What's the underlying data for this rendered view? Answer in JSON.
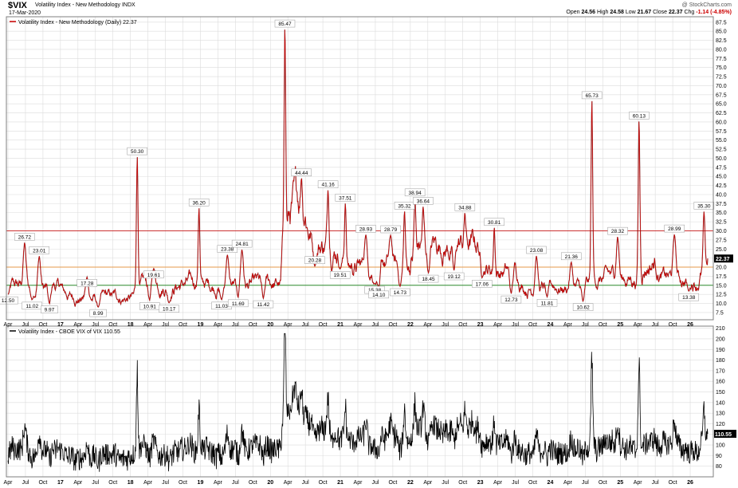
{
  "header": {
    "symbol": "$VIX",
    "name": "Volatility Index - New Methodology  INDX",
    "date": "17-Mar-2020",
    "watermark": "@ StockCharts.com",
    "open_label": "Open",
    "open": "24.56",
    "high_label": "High",
    "high": "24.58",
    "low_label": "Low",
    "low": "21.67",
    "close_label": "Close",
    "close": "22.37",
    "chg_label": "Chg",
    "chg": "-1.14 (-4.85%)"
  },
  "colors": {
    "price_line": "#cc0000",
    "price_shadow": "#000000",
    "line_30": "#cc3333",
    "line_20": "#e69a4a",
    "line_15": "#2e8b2e",
    "grid": "#dcdcdc",
    "frame": "#7f7f7f",
    "current_box": "#000000"
  },
  "chart_data": [
    {
      "type": "line",
      "title": "Volatility Index - New Methodology (Daily) 22.37",
      "y_scale": "linear",
      "ylim": [
        5.5,
        89
      ],
      "y_ticks": [
        "7.5",
        "10.0",
        "12.5",
        "15.0",
        "17.5",
        "20.0",
        "22.5",
        "25.0",
        "27.5",
        "30.0",
        "32.5",
        "35.0",
        "37.5",
        "40.0",
        "42.5",
        "45.0",
        "47.5",
        "50.0",
        "52.5",
        "55.0",
        "57.5",
        "60.0",
        "62.5",
        "65.0",
        "67.5",
        "70.0",
        "72.5",
        "75.0",
        "77.5",
        "80.0",
        "82.5",
        "85.0",
        "87.5"
      ],
      "x_ticks": [
        "Apr",
        "Jul",
        "Oct",
        "17",
        "Apr",
        "Jul",
        "Oct",
        "18",
        "Apr",
        "Jul",
        "Oct",
        "19",
        "Apr",
        "Jul",
        "Oct",
        "20",
        "Apr",
        "Jul",
        "Oct",
        "21",
        "Apr",
        "Jul",
        "Oct",
        "22",
        "Apr",
        "Jul",
        "Oct",
        "23",
        "Apr",
        "Jul",
        "Oct",
        "24",
        "Apr",
        "Jul",
        "Oct",
        "25",
        "Apr",
        "Jul",
        "Oct",
        "26"
      ],
      "x_ticks_per_year": 4,
      "x_start": "2016-04",
      "horizontal_lines": [
        30,
        20,
        15
      ],
      "current_value": "22.37",
      "annotations": [
        {
          "x": "2016-04-01",
          "y": 12.5,
          "label": "12.50"
        },
        {
          "x": "2016-06-27",
          "y": 26.72,
          "label": "26.72"
        },
        {
          "x": "2016-08-05",
          "y": 11.02,
          "label": "11.02"
        },
        {
          "x": "2016-09-12",
          "y": 23.01,
          "label": "23.01"
        },
        {
          "x": "2016-11-04",
          "y": 9.97,
          "label": "9.97"
        },
        {
          "x": "2017-05-18",
          "y": 17.28,
          "label": "17.28"
        },
        {
          "x": "2017-07-15",
          "y": 8.99,
          "label": "8.99"
        },
        {
          "x": "2018-02-06",
          "y": 50.3,
          "label": "50.30"
        },
        {
          "x": "2018-04-10",
          "y": 10.91,
          "label": "10.91"
        },
        {
          "x": "2018-05-01",
          "y": 19.61,
          "label": "19.61"
        },
        {
          "x": "2018-07-20",
          "y": 10.17,
          "label": "10.17"
        },
        {
          "x": "2018-12-24",
          "y": 36.2,
          "label": "36.20"
        },
        {
          "x": "2019-04-20",
          "y": 11.03,
          "label": "11.03"
        },
        {
          "x": "2019-05-20",
          "y": 23.38,
          "label": "23.38"
        },
        {
          "x": "2019-07-15",
          "y": 11.69,
          "label": "11.69"
        },
        {
          "x": "2019-08-05",
          "y": 24.81,
          "label": "24.81"
        },
        {
          "x": "2019-11-25",
          "y": 11.42,
          "label": "11.42"
        },
        {
          "x": "2020-03-16",
          "y": 85.47,
          "label": "85.47"
        },
        {
          "x": "2020-06-11",
          "y": 44.44,
          "label": "44.44"
        },
        {
          "x": "2020-08-20",
          "y": 20.28,
          "label": "20.28"
        },
        {
          "x": "2020-10-28",
          "y": 41.16,
          "label": "41.16"
        },
        {
          "x": "2020-12-30",
          "y": 19.51,
          "label": "19.51"
        },
        {
          "x": "2021-01-27",
          "y": 37.51,
          "label": "37.51"
        },
        {
          "x": "2021-05-12",
          "y": 28.93,
          "label": "28.93"
        },
        {
          "x": "2021-06-28",
          "y": 15.38,
          "label": "15.38"
        },
        {
          "x": "2021-07-19",
          "y": 14.1,
          "label": "14.10"
        },
        {
          "x": "2021-09-20",
          "y": 28.79,
          "label": "28.79"
        },
        {
          "x": "2021-11-08",
          "y": 14.73,
          "label": "14.73"
        },
        {
          "x": "2021-12-01",
          "y": 35.32,
          "label": "35.32"
        },
        {
          "x": "2022-01-25",
          "y": 38.94,
          "label": "38.94"
        },
        {
          "x": "2022-03-07",
          "y": 36.64,
          "label": "36.64"
        },
        {
          "x": "2022-04-04",
          "y": 18.45,
          "label": "18.45"
        },
        {
          "x": "2022-08-16",
          "y": 19.12,
          "label": "19.12"
        },
        {
          "x": "2022-10-12",
          "y": 34.88,
          "label": "34.88"
        },
        {
          "x": "2023-01-10",
          "y": 17.06,
          "label": "17.06"
        },
        {
          "x": "2023-03-13",
          "y": 30.81,
          "label": "30.81"
        },
        {
          "x": "2023-06-10",
          "y": 12.73,
          "label": "12.73"
        },
        {
          "x": "2023-10-20",
          "y": 23.08,
          "label": "23.08"
        },
        {
          "x": "2023-12-15",
          "y": 11.81,
          "label": "11.81"
        },
        {
          "x": "2024-04-19",
          "y": 21.36,
          "label": "21.36"
        },
        {
          "x": "2024-06-20",
          "y": 10.62,
          "label": "10.62"
        },
        {
          "x": "2024-08-05",
          "y": 65.73,
          "label": "65.73"
        },
        {
          "x": "2024-12-18",
          "y": 28.32,
          "label": "28.32"
        },
        {
          "x": "2025-04-08",
          "y": 60.13,
          "label": "60.13"
        },
        {
          "x": "2025-10-10",
          "y": 28.99,
          "label": "28.99"
        },
        {
          "x": "2025-12-24",
          "y": 13.38,
          "label": "13.38"
        },
        {
          "x": "2026-03-12",
          "y": 35.3,
          "label": "35.30"
        }
      ]
    },
    {
      "type": "line",
      "title": "Volatility Index - CBOE VIX of VIX 110.55",
      "ylim": [
        70,
        212
      ],
      "y_ticks": [
        "80",
        "90",
        "100",
        "110",
        "120",
        "130",
        "140",
        "150",
        "160",
        "170",
        "180",
        "190",
        "200",
        "210"
      ],
      "current_value": "110.55"
    }
  ]
}
